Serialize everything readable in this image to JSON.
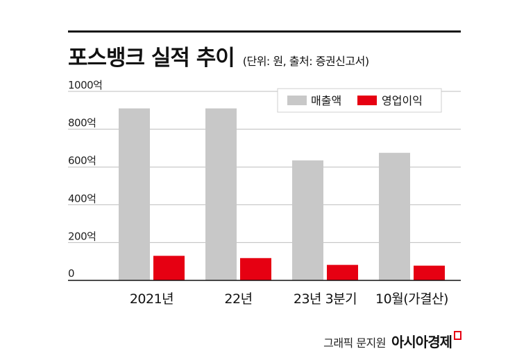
{
  "chart_data": {
    "type": "bar",
    "title": "포스뱅크 실적 추이",
    "subtitle": "(단위: 원, 출처: 증권신고서)",
    "categories": [
      "2021년",
      "22년",
      "23년 3분기",
      "10월(가결산)"
    ],
    "series": [
      {
        "name": "매출액",
        "values": [
          910,
          910,
          635,
          675
        ],
        "color": "#c8c8c8"
      },
      {
        "name": "영업이익",
        "values": [
          130,
          118,
          82,
          78
        ],
        "color": "#e60012"
      }
    ],
    "y_ticks": [
      {
        "value": 0,
        "label": "0"
      },
      {
        "value": 200,
        "label": "200억"
      },
      {
        "value": 400,
        "label": "400억"
      },
      {
        "value": 600,
        "label": "600억"
      },
      {
        "value": 800,
        "label": "800억"
      },
      {
        "value": 1000,
        "label": "1000억"
      }
    ],
    "ylim": [
      0,
      1000
    ],
    "grid": true,
    "legend": "top-right"
  },
  "credit": {
    "text": "그래픽 문지원",
    "brand": "아시아경제"
  }
}
